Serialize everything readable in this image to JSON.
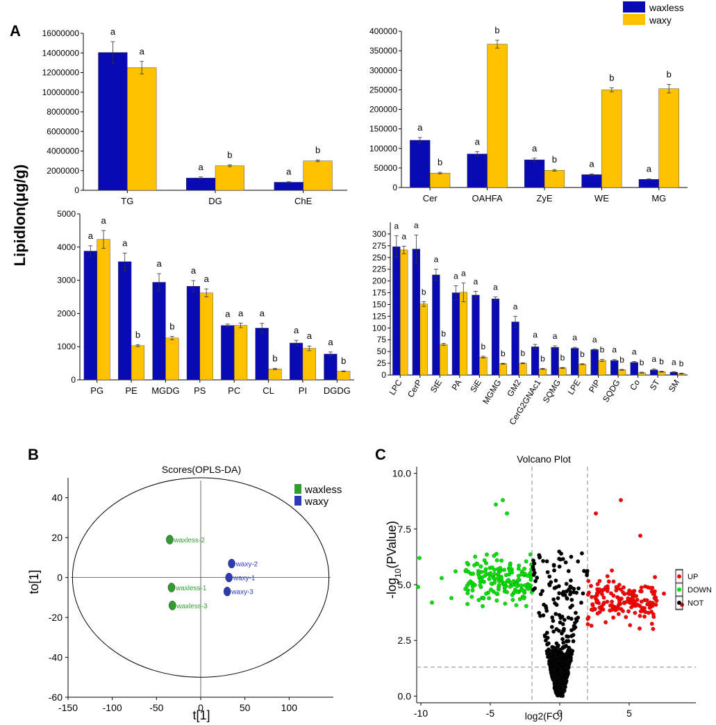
{
  "panel_labels": {
    "A": "A",
    "B": "B",
    "C": "C"
  },
  "y_axis_title": "LipidIon(μg/g)",
  "legend": {
    "series": [
      {
        "name": "waxless",
        "color": "#0a0ab4"
      },
      {
        "name": "waxy",
        "color": "#fdc100"
      }
    ]
  },
  "colors": {
    "waxless": "#0a0ab4",
    "waxy": "#fdc100",
    "up": "#ff0000",
    "down": "#00e000",
    "not": "#000000",
    "pca_green": "#2f9e2f",
    "pca_blue": "#2d3ab8"
  },
  "chart_data": [
    {
      "id": "A1",
      "type": "bar",
      "categories": [
        "TG",
        "DG",
        "ChE"
      ],
      "ylim": [
        0,
        16000000
      ],
      "yticks": [
        0,
        2000000,
        4000000,
        6000000,
        8000000,
        10000000,
        12000000,
        14000000,
        16000000
      ],
      "series": [
        {
          "name": "waxless",
          "values": [
            14050000,
            1250000,
            820000
          ],
          "errors": [
            1100000,
            110000,
            50000
          ],
          "letters": [
            "a",
            "a",
            "a"
          ]
        },
        {
          "name": "waxy",
          "values": [
            12500000,
            2500000,
            3000000
          ],
          "errors": [
            650000,
            90000,
            90000
          ],
          "letters": [
            "a",
            "b",
            "b"
          ]
        }
      ]
    },
    {
      "id": "A2",
      "type": "bar",
      "categories": [
        "Cer",
        "OAHFA",
        "ZyE",
        "WE",
        "MG"
      ],
      "ylim": [
        0,
        400000
      ],
      "yticks": [
        0,
        50000,
        100000,
        150000,
        200000,
        250000,
        300000,
        350000,
        400000
      ],
      "series": [
        {
          "name": "waxless",
          "values": [
            121000,
            86000,
            71000,
            33000,
            21000
          ],
          "errors": [
            7000,
            6000,
            4000,
            1500,
            1000
          ],
          "letters": [
            "a",
            "a",
            "a",
            "a",
            "a"
          ]
        },
        {
          "name": "waxy",
          "values": [
            37000,
            367000,
            44000,
            250000,
            253000
          ],
          "errors": [
            2000,
            10000,
            2000,
            5000,
            11000
          ],
          "letters": [
            "b",
            "b",
            "b",
            "b",
            "b"
          ]
        }
      ]
    },
    {
      "id": "A3",
      "type": "bar",
      "categories": [
        "PG",
        "PE",
        "MGDG",
        "PS",
        "PC",
        "CL",
        "PI",
        "DGDG"
      ],
      "ylim": [
        0,
        5000
      ],
      "yticks": [
        0,
        1000,
        2000,
        3000,
        4000,
        5000
      ],
      "series": [
        {
          "name": "waxless",
          "values": [
            3880,
            3560,
            2940,
            2820,
            1640,
            1560,
            1110,
            780
          ],
          "errors": [
            160,
            260,
            260,
            170,
            40,
            140,
            80,
            60
          ],
          "letters": [
            "a",
            "a",
            "a",
            "a",
            "a",
            "a",
            "a",
            "a"
          ]
        },
        {
          "name": "waxy",
          "values": [
            4230,
            1030,
            1260,
            2620,
            1640,
            330,
            950,
            260
          ],
          "errors": [
            270,
            30,
            50,
            120,
            70,
            20,
            70,
            10
          ],
          "letters": [
            "a",
            "b",
            "b",
            "a",
            "a",
            "b",
            "a",
            "b"
          ]
        }
      ]
    },
    {
      "id": "A4",
      "type": "bar",
      "categories": [
        "LPC",
        "CerP",
        "StE",
        "PA",
        "SiE",
        "MGMG",
        "GM2",
        "CerG2GNAc1",
        "SQMG",
        "LPE",
        "PIP",
        "SQDG",
        "Co",
        "ST",
        "SM"
      ],
      "ylim": [
        0,
        325
      ],
      "yticks": [
        0,
        25,
        50,
        75,
        100,
        125,
        150,
        175,
        200,
        225,
        250,
        275,
        300
      ],
      "series": [
        {
          "name": "waxless",
          "values": [
            273,
            268,
            213,
            175,
            170,
            162,
            113,
            60,
            59,
            57,
            54,
            31,
            27,
            11,
            6
          ],
          "errors": [
            23,
            30,
            12,
            15,
            8,
            4,
            12,
            5,
            3,
            2,
            1,
            2,
            2,
            2,
            1
          ],
          "letters": [
            "a",
            "a",
            "a",
            "a",
            "a",
            "a",
            "a",
            "a",
            "a",
            "a",
            "a",
            "a",
            "a",
            "a",
            "a"
          ]
        },
        {
          "name": "waxy",
          "values": [
            266,
            151,
            65,
            176,
            38,
            24,
            25,
            13,
            15,
            23,
            31,
            11,
            5,
            7,
            3
          ],
          "errors": [
            8,
            5,
            2,
            20,
            2,
            1,
            1,
            1,
            1,
            1,
            2,
            1,
            1,
            1,
            1
          ],
          "letters": [
            "a",
            "b",
            "b",
            "a",
            "b",
            "b",
            "b",
            "b",
            "b",
            "b",
            "b",
            "b",
            "b",
            "b",
            "b"
          ]
        }
      ]
    },
    {
      "id": "B",
      "type": "scatter",
      "title": "Scores(OPLS-DA)",
      "xlabel": "t[1]",
      "ylabel": "to[1]",
      "xlim": [
        -150,
        150
      ],
      "ylim": [
        -60,
        50
      ],
      "xticks": [
        -150,
        -100,
        -50,
        0,
        50,
        100
      ],
      "yticks": [
        -60,
        -40,
        -20,
        0,
        20,
        40
      ],
      "legend": [
        "waxless",
        "waxy"
      ],
      "ellipse": {
        "rx": 145,
        "ry": 50
      },
      "points": [
        {
          "label": "waxless-2",
          "group": "waxless",
          "x": -35,
          "y": 19
        },
        {
          "label": "waxless-1",
          "group": "waxless",
          "x": -33,
          "y": -5
        },
        {
          "label": "waxless-3",
          "group": "waxless",
          "x": -32,
          "y": -14
        },
        {
          "label": "waxy-2",
          "group": "waxy",
          "x": 35,
          "y": 7
        },
        {
          "label": "waxy-1",
          "group": "waxy",
          "x": 32,
          "y": 0
        },
        {
          "label": "waxy-3",
          "group": "waxy",
          "x": 30,
          "y": -7
        }
      ]
    },
    {
      "id": "C",
      "type": "scatter",
      "title": "Volcano Plot",
      "xlabel": "log2(FC)",
      "ylabel": "-log10(PValue)",
      "xlim": [
        -10.3,
        9.8
      ],
      "ylim": [
        -0.3,
        10.3
      ],
      "xticks": [
        -10,
        -5,
        0,
        5
      ],
      "yticks": [
        0.0,
        2.5,
        5.0,
        7.5,
        10.0
      ],
      "thresholds": {
        "x": [
          -2,
          2
        ],
        "y": 1.3
      },
      "legend": [
        "UP",
        "DOWN",
        "NOT"
      ],
      "clusters": [
        {
          "group": "DOWN",
          "count": 170,
          "x_range": [
            -6.8,
            -2
          ],
          "y_center": 5.2,
          "y_spread": 1.0
        },
        {
          "group": "UP",
          "count": 160,
          "x_range": [
            2,
            7
          ],
          "y_center": 4.3,
          "y_spread": 1.0
        },
        {
          "group": "NOT",
          "count": 700,
          "x_range": [
            -2,
            2
          ],
          "y_center": 2.0,
          "y_spread": 1.5
        }
      ],
      "extra_points": [
        {
          "group": "DOWN",
          "x": -10.1,
          "y": 6.2
        },
        {
          "group": "DOWN",
          "x": -10.2,
          "y": 4.9
        },
        {
          "group": "DOWN",
          "x": -9.2,
          "y": 4.2
        },
        {
          "group": "DOWN",
          "x": -8.5,
          "y": 5.3
        },
        {
          "group": "DOWN",
          "x": -7.8,
          "y": 4.4
        },
        {
          "group": "DOWN",
          "x": -7.5,
          "y": 5.6
        },
        {
          "group": "DOWN",
          "x": -4.1,
          "y": 8.8
        },
        {
          "group": "DOWN",
          "x": -4.6,
          "y": 8.6
        },
        {
          "group": "DOWN",
          "x": -3.8,
          "y": 8.2
        },
        {
          "group": "UP",
          "x": 4.4,
          "y": 8.8
        },
        {
          "group": "UP",
          "x": 2.6,
          "y": 8.2
        },
        {
          "group": "UP",
          "x": 8.8,
          "y": 4.1
        },
        {
          "group": "UP",
          "x": 7.5,
          "y": 4.6
        },
        {
          "group": "UP",
          "x": 5.8,
          "y": 7.2
        }
      ]
    }
  ]
}
